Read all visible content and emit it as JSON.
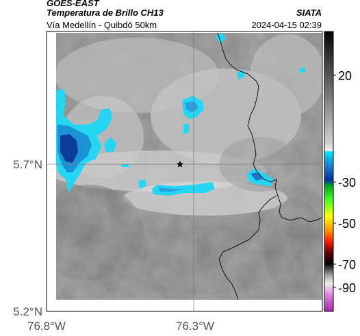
{
  "header": {
    "agency": "GOES-EAST",
    "product": "Temperatura de Brillo CH13",
    "brand": "SIATA",
    "subtitle": "Vía Medellín - Quibdó 50km",
    "datetime": "2024-04-15 02:39"
  },
  "map": {
    "lat_ticks": [
      "5.7°N",
      "5.2°N"
    ],
    "lon_ticks": [
      "76.8°W",
      "76.3°W"
    ],
    "marker": "star"
  },
  "colorbar": {
    "labels": [
      "20",
      "-30",
      "-50",
      "-70",
      "-90"
    ],
    "colors": {
      "top": "#000000",
      "gray_high": "#3a3a3a",
      "gray_low": "#f4f4f4",
      "cyan": "#00e0ff",
      "blue": "#0033aa",
      "green": "#00cc00",
      "yellow": "#ffee00",
      "red": "#ff2200",
      "dark": "#200000",
      "magenta": "#cc33cc"
    }
  },
  "colors": {
    "cloud_cyan": "#1fd4f0",
    "cloud_mid": "#1a8fd8",
    "cloud_deep": "#0a3c9a",
    "background_gray": "#8a8a8a",
    "light_gray": "#c8c8c8"
  }
}
